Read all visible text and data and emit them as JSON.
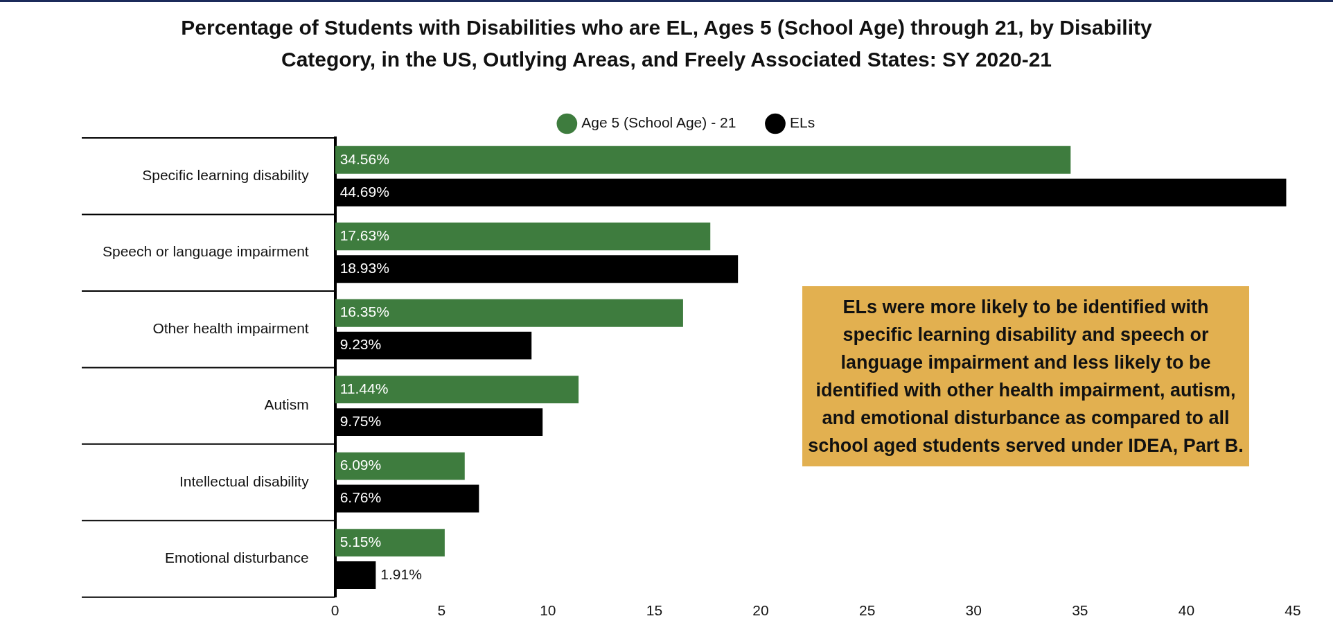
{
  "chart_data": {
    "type": "bar",
    "orientation": "horizontal",
    "title": "Percentage of Students with Disabilities who are EL, Ages 5 (School Age) through 21, by Disability Category, in the US, Outlying Areas, and Freely Associated States: SY 2020-21",
    "categories": [
      "Specific learning disability",
      "Speech or language impairment",
      "Other health impairment",
      "Autism",
      "Intellectual disability",
      "Emotional disturbance"
    ],
    "series": [
      {
        "name": "Age 5 (School Age) - 21",
        "color": "#3e7c3e",
        "values": [
          34.56,
          17.63,
          16.35,
          11.44,
          6.09,
          5.15
        ],
        "value_labels": [
          "34.56%",
          "17.63%",
          "16.35%",
          "11.44%",
          "6.09%",
          "5.15%"
        ]
      },
      {
        "name": "ELs",
        "color": "#000000",
        "values": [
          44.69,
          18.93,
          9.23,
          9.75,
          6.76,
          1.91
        ],
        "value_labels": [
          "44.69%",
          "18.93%",
          "9.23%",
          "9.75%",
          "6.76%",
          "1.91%"
        ]
      }
    ],
    "xlim": [
      0,
      45
    ],
    "xticks": [
      0,
      5,
      10,
      15,
      20,
      25,
      30,
      35,
      40,
      45
    ],
    "legend": "top",
    "annotations": [
      "ELs were more likely to be identified with specific learning disability and speech or language impairment and less likely to be identified with other health impairment, autism, and emotional disturbance as compared to all school aged students served under IDEA, Part B."
    ]
  }
}
